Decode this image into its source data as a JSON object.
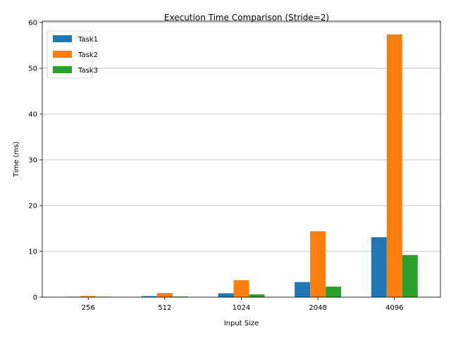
{
  "chart_data": {
    "type": "bar",
    "title": "Execution Time Comparison (Stride=2)",
    "xlabel": "Input Size",
    "ylabel": "Time (ms)",
    "categories": [
      "256",
      "512",
      "1024",
      "2048",
      "4096"
    ],
    "ylim": [
      0,
      60.3
    ],
    "yticks": [
      "0",
      "10",
      "20",
      "30",
      "40",
      "50",
      "60"
    ],
    "grid": "y",
    "legend_position": "top-left",
    "series": [
      {
        "name": "Task1",
        "color": "#1f77b4",
        "values": [
          0.06,
          0.22,
          0.85,
          3.3,
          13.1
        ]
      },
      {
        "name": "Task2",
        "color": "#ff7f0e",
        "values": [
          0.25,
          0.9,
          3.7,
          14.4,
          57.4
        ]
      },
      {
        "name": "Task3",
        "color": "#2ca02c",
        "values": [
          0.04,
          0.13,
          0.6,
          2.3,
          9.2
        ]
      }
    ]
  }
}
